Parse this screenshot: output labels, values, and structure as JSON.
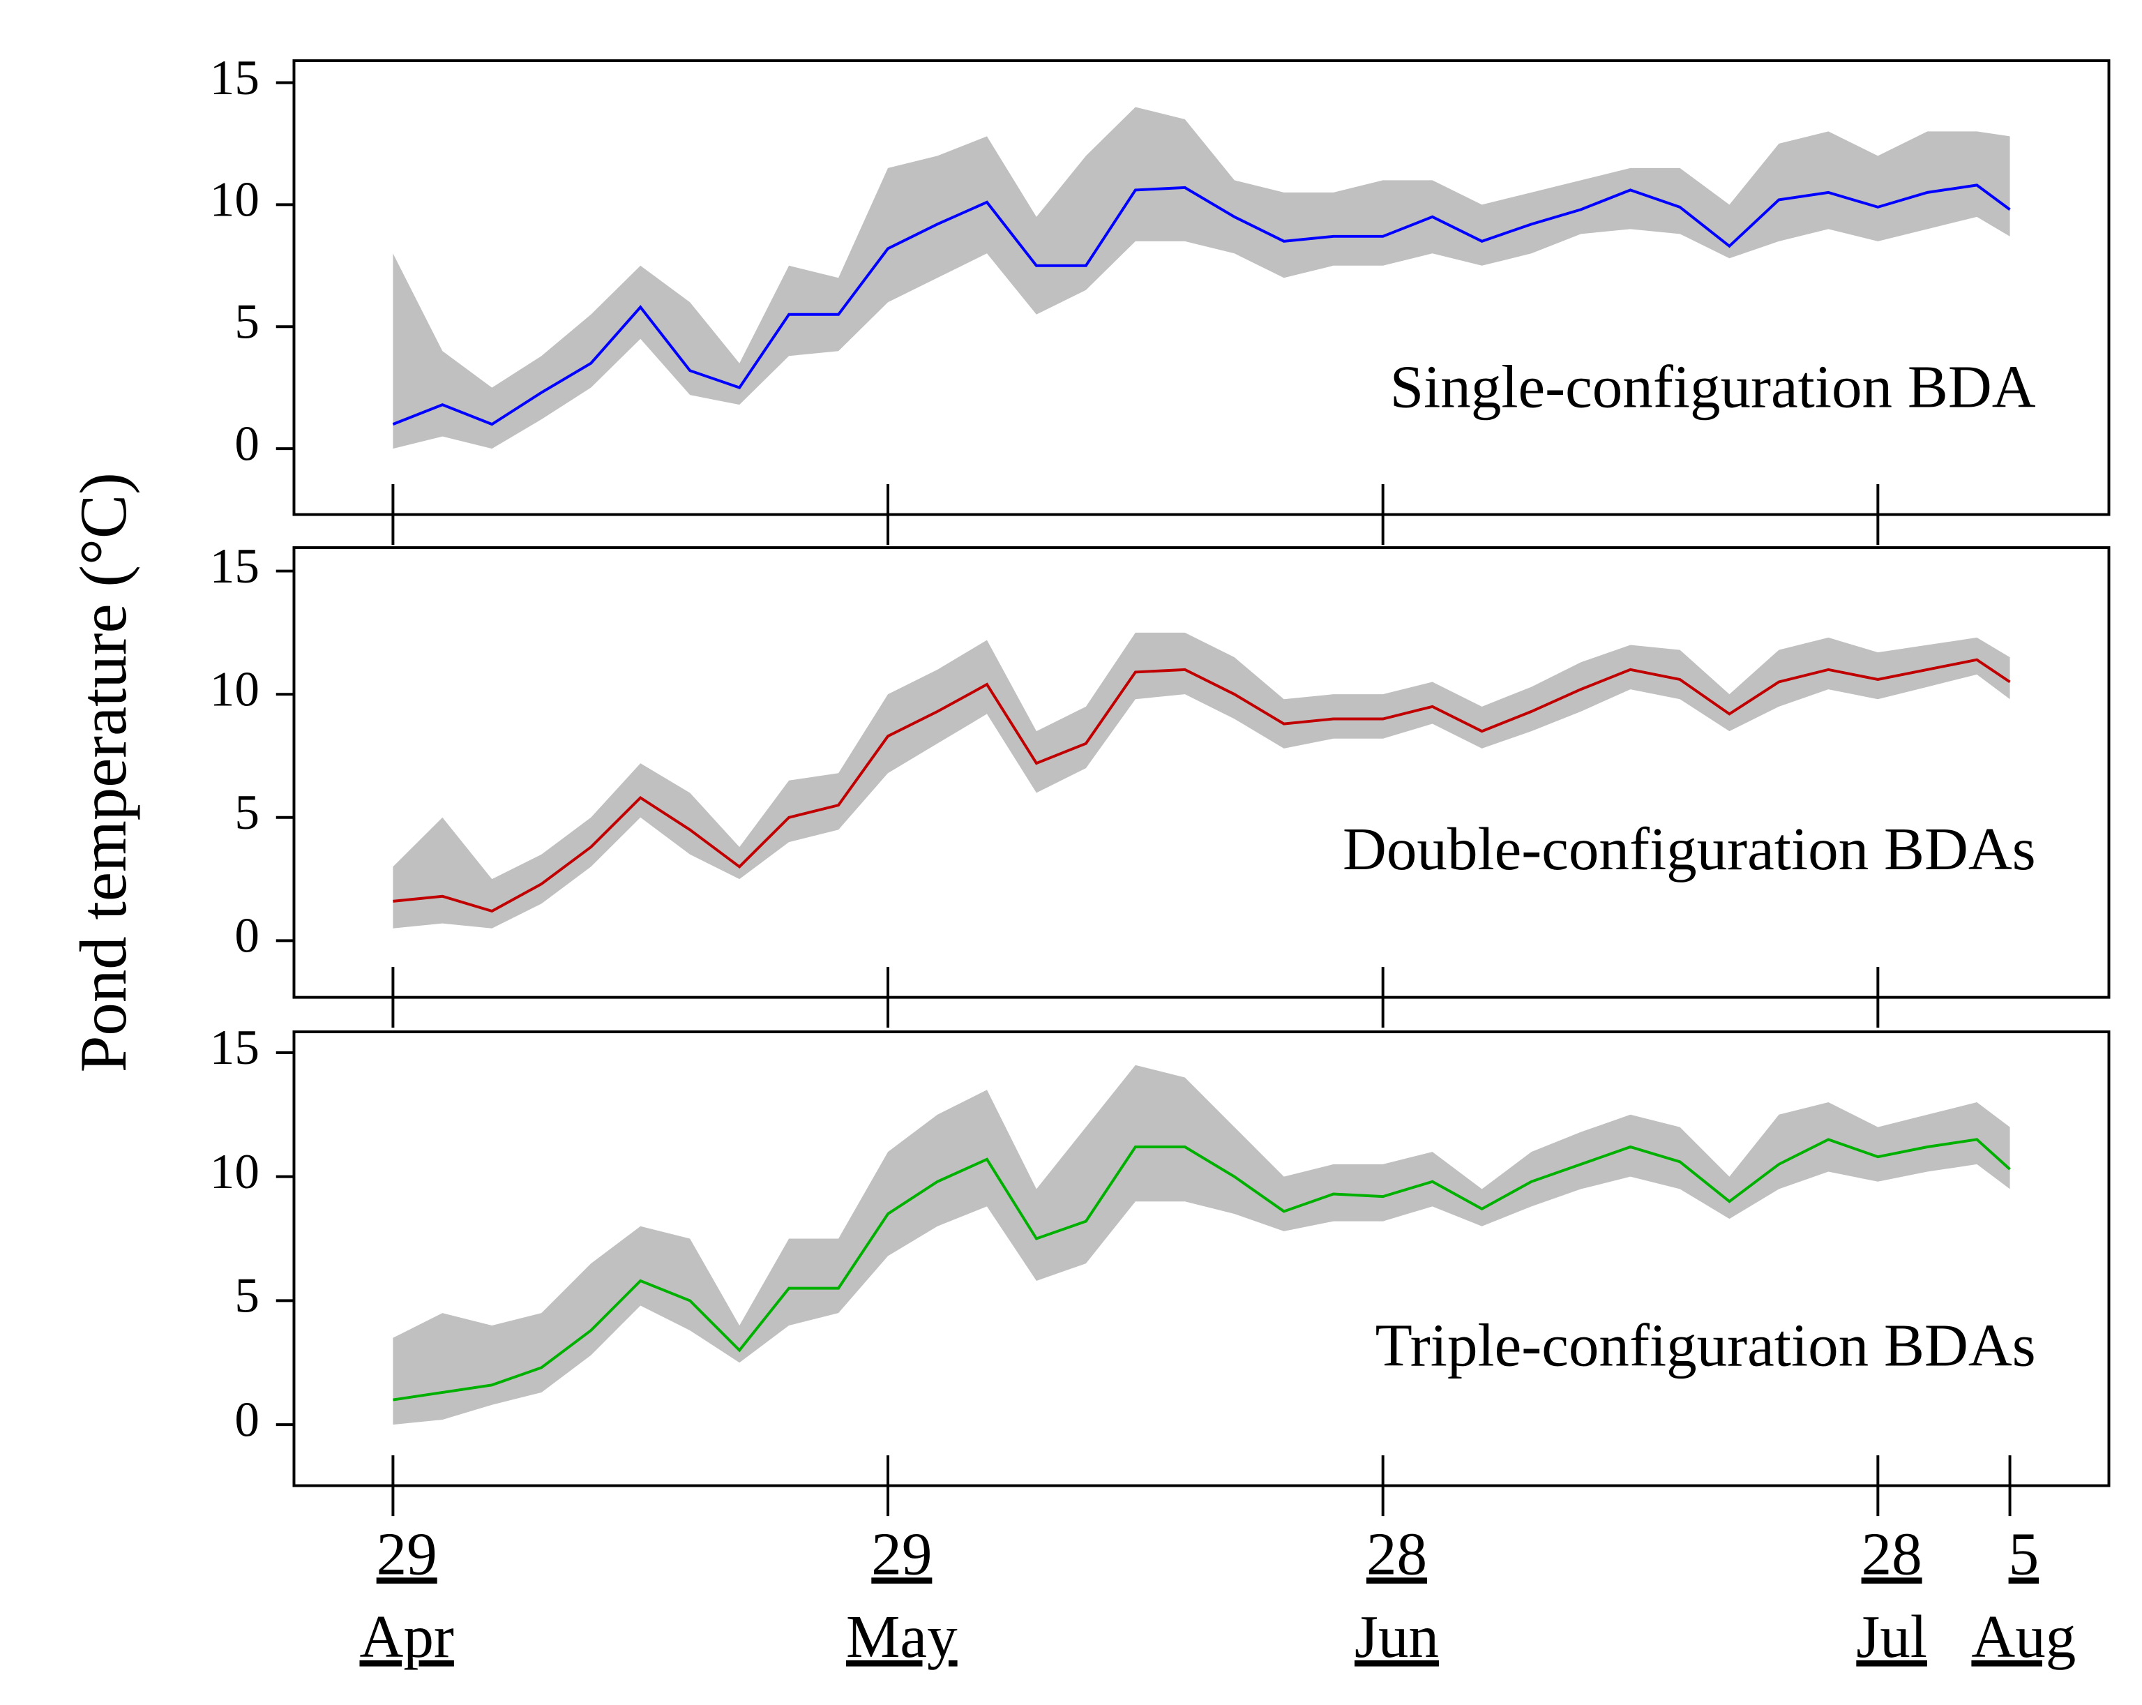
{
  "ylabel": "Pond temperature (°C)",
  "chart_data": [
    {
      "type": "line",
      "annotation": "Single-configuration BDA",
      "x": [
        0,
        3,
        6,
        9,
        12,
        15,
        18,
        21,
        24,
        27,
        30,
        33,
        36,
        39,
        42,
        45,
        48,
        51,
        54,
        57,
        60,
        63,
        66,
        69,
        72,
        75,
        78,
        81,
        84,
        87,
        90,
        93,
        96,
        98
      ],
      "series": [
        {
          "color": "#0000ff",
          "values": [
            1.0,
            1.8,
            1.0,
            2.3,
            3.5,
            5.8,
            3.2,
            2.5,
            5.5,
            5.5,
            8.2,
            9.2,
            10.1,
            7.5,
            7.5,
            10.6,
            10.7,
            9.5,
            8.5,
            8.7,
            8.7,
            9.5,
            8.5,
            9.2,
            9.8,
            10.6,
            9.9,
            8.3,
            10.2,
            10.5,
            9.9,
            10.5,
            10.8,
            9.8
          ]
        }
      ],
      "band": {
        "color": "#c0c0c0",
        "upper": [
          8,
          4,
          2.5,
          3.8,
          5.5,
          7.5,
          6,
          3.5,
          7.5,
          7,
          11.5,
          12,
          12.8,
          9.5,
          12,
          14,
          13.5,
          11,
          10.5,
          10.5,
          11,
          11,
          10,
          10.5,
          11,
          11.5,
          11.5,
          10,
          12.5,
          13,
          12,
          13,
          13,
          12.8
        ],
        "lower": [
          0,
          0.5,
          0,
          1.2,
          2.5,
          4.5,
          2.2,
          1.8,
          3.8,
          4.0,
          6.0,
          7.0,
          8.0,
          5.5,
          6.5,
          8.5,
          8.5,
          8.0,
          7.0,
          7.5,
          7.5,
          8.0,
          7.5,
          8.0,
          8.8,
          9.0,
          8.8,
          7.8,
          8.5,
          9.0,
          8.5,
          9.0,
          9.5,
          8.7
        ]
      },
      "xlim": [
        -6,
        104
      ],
      "xticks": [
        0,
        30,
        60,
        90
      ],
      "ylim": [
        -2.7,
        15.9
      ],
      "yticks": [
        0,
        5,
        10,
        15
      ]
    },
    {
      "type": "line",
      "annotation": "Double-configuration BDAs",
      "x": [
        0,
        3,
        6,
        9,
        12,
        15,
        18,
        21,
        24,
        27,
        30,
        33,
        36,
        39,
        42,
        45,
        48,
        51,
        54,
        57,
        60,
        63,
        66,
        69,
        72,
        75,
        78,
        81,
        84,
        87,
        90,
        93,
        96,
        98
      ],
      "series": [
        {
          "color": "#c00000",
          "values": [
            1.6,
            1.8,
            1.2,
            2.3,
            3.8,
            5.8,
            4.5,
            3.0,
            5.0,
            5.5,
            8.3,
            9.3,
            10.4,
            7.2,
            8.0,
            10.9,
            11.0,
            10.0,
            8.8,
            9.0,
            9.0,
            9.5,
            8.5,
            9.3,
            10.2,
            11.0,
            10.6,
            9.2,
            10.5,
            11.0,
            10.6,
            11.0,
            11.4,
            10.5
          ]
        }
      ],
      "band": {
        "color": "#c0c0c0",
        "upper": [
          3.0,
          5.0,
          2.5,
          3.5,
          5.0,
          7.2,
          6.0,
          3.8,
          6.5,
          6.8,
          10.0,
          11.0,
          12.2,
          8.5,
          9.5,
          12.5,
          12.5,
          11.5,
          9.8,
          10.0,
          10.0,
          10.5,
          9.5,
          10.3,
          11.3,
          12.0,
          11.8,
          10.0,
          11.8,
          12.3,
          11.7,
          12.0,
          12.3,
          11.5
        ],
        "lower": [
          0.5,
          0.7,
          0.5,
          1.5,
          3.0,
          5.0,
          3.5,
          2.5,
          4.0,
          4.5,
          6.8,
          8.0,
          9.2,
          6.0,
          7.0,
          9.8,
          10.0,
          9.0,
          7.8,
          8.2,
          8.2,
          8.8,
          7.8,
          8.5,
          9.3,
          10.2,
          9.8,
          8.5,
          9.5,
          10.2,
          9.8,
          10.3,
          10.8,
          9.8
        ]
      },
      "xlim": [
        -6,
        104
      ],
      "xticks": [
        0,
        30,
        60,
        90
      ],
      "ylim": [
        -2.3,
        15.95
      ],
      "yticks": [
        0,
        5,
        10,
        15
      ]
    },
    {
      "type": "line",
      "annotation": "Triple-configuration BDAs",
      "x": [
        0,
        3,
        6,
        9,
        12,
        15,
        18,
        21,
        24,
        27,
        30,
        33,
        36,
        39,
        42,
        45,
        48,
        51,
        54,
        57,
        60,
        63,
        66,
        69,
        72,
        75,
        78,
        81,
        84,
        87,
        90,
        93,
        96,
        98
      ],
      "series": [
        {
          "color": "#00b000",
          "values": [
            1.0,
            1.3,
            1.6,
            2.3,
            3.8,
            5.8,
            5.0,
            3.0,
            5.5,
            5.5,
            8.5,
            9.8,
            10.7,
            7.5,
            8.2,
            11.2,
            11.2,
            10.0,
            8.6,
            9.3,
            9.2,
            9.8,
            8.7,
            9.8,
            10.5,
            11.2,
            10.6,
            9.0,
            10.5,
            11.5,
            10.8,
            11.2,
            11.5,
            10.3
          ]
        }
      ],
      "band": {
        "color": "#c0c0c0",
        "upper": [
          3.5,
          4.5,
          4.0,
          4.5,
          6.5,
          8.0,
          7.5,
          4.0,
          7.5,
          7.5,
          11.0,
          12.5,
          13.5,
          9.5,
          12.0,
          14.5,
          14.0,
          12.0,
          10.0,
          10.5,
          10.5,
          11.0,
          9.5,
          11.0,
          11.8,
          12.5,
          12.0,
          10.0,
          12.5,
          13.0,
          12.0,
          12.5,
          13.0,
          12.0
        ],
        "lower": [
          0,
          0.2,
          0.8,
          1.3,
          2.8,
          4.8,
          3.8,
          2.5,
          4.0,
          4.5,
          6.8,
          8.0,
          8.8,
          5.8,
          6.5,
          9.0,
          9.0,
          8.5,
          7.8,
          8.2,
          8.2,
          8.8,
          8.0,
          8.8,
          9.5,
          10.0,
          9.5,
          8.3,
          9.5,
          10.2,
          9.8,
          10.2,
          10.5,
          9.5
        ]
      },
      "xlim": [
        -6,
        104
      ],
      "xticks": [
        {
          "value": 0,
          "label": "29",
          "month": "Apr"
        },
        {
          "value": 30,
          "label": "29",
          "month": "May"
        },
        {
          "value": 60,
          "label": "28",
          "month": "Jun"
        },
        {
          "value": 90,
          "label": "28",
          "month": "Jul"
        },
        {
          "value": 98,
          "label": "5",
          "month": "Aug"
        }
      ],
      "ylim": [
        -2.46,
        15.84
      ],
      "yticks": [
        0,
        5,
        10,
        15
      ]
    }
  ]
}
